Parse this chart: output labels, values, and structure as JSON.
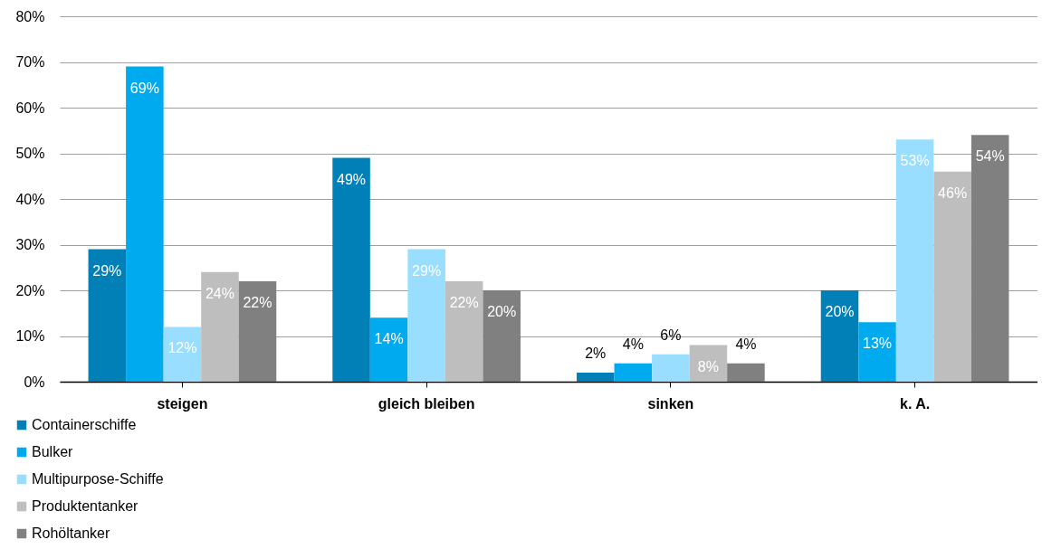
{
  "chart_data": {
    "type": "bar",
    "categories": [
      "steigen",
      "gleich bleiben",
      "sinken",
      "k. A."
    ],
    "series": [
      {
        "name": "Containerschiffe",
        "color": "#0080b7",
        "values": [
          29,
          49,
          2,
          20
        ],
        "value_labels": [
          "29%",
          "49%",
          "2%",
          "20%"
        ]
      },
      {
        "name": "Bulker",
        "color": "#00aaef",
        "values": [
          69,
          14,
          4,
          13
        ],
        "value_labels": [
          "69%",
          "14%",
          "4%",
          "13%"
        ]
      },
      {
        "name": "Multipurpose-Schiffe",
        "color": "#99ddff",
        "values": [
          12,
          29,
          6,
          53
        ],
        "value_labels": [
          "12%",
          "29%",
          "6%",
          "53%"
        ]
      },
      {
        "name": "Produktentanker",
        "color": "#bebebe",
        "values": [
          24,
          22,
          8,
          46
        ],
        "value_labels": [
          "24%",
          "22%",
          "8%",
          "46%"
        ]
      },
      {
        "name": "Rohöltanker",
        "color": "#808080",
        "values": [
          22,
          20,
          4,
          54
        ],
        "value_labels": [
          "22%",
          "20%",
          "4%",
          "54%"
        ]
      }
    ],
    "ylim": [
      0,
      80
    ],
    "yticks": [
      {
        "value": 0,
        "label": "0%"
      },
      {
        "value": 10,
        "label": "10%"
      },
      {
        "value": 20,
        "label": "20%"
      },
      {
        "value": 30,
        "label": "30%"
      },
      {
        "value": 40,
        "label": "40%"
      },
      {
        "value": 50,
        "label": "50%"
      },
      {
        "value": 60,
        "label": "60%"
      },
      {
        "value": 70,
        "label": "70%"
      },
      {
        "value": 80,
        "label": "80%"
      }
    ],
    "grid": "y",
    "legend": "bottom left"
  }
}
